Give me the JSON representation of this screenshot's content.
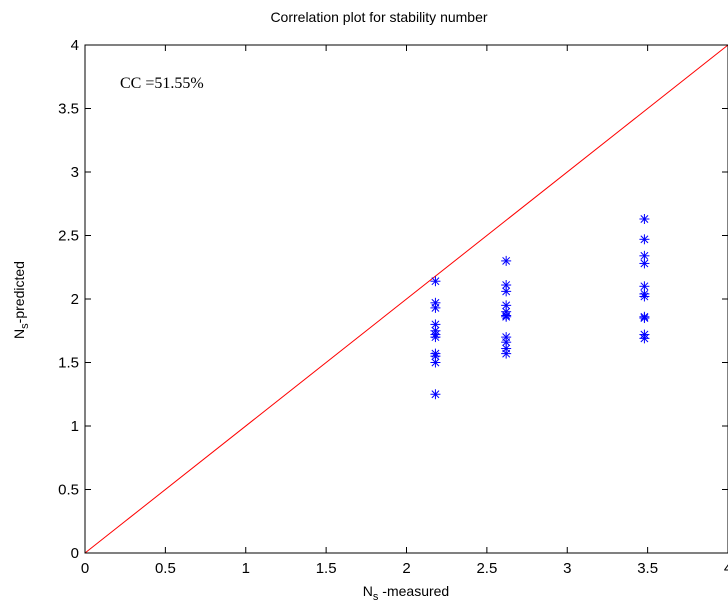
{
  "chart_data": {
    "type": "scatter",
    "title": "Correlation plot for stability number",
    "xlabel": {
      "main": "N",
      "sub": "s",
      "rest": " -measured"
    },
    "ylabel": {
      "main": "N",
      "sub": "s",
      "rest": "-predicted"
    },
    "annotation": "CC =51.55%",
    "xlim": [
      0,
      4
    ],
    "ylim": [
      0,
      4
    ],
    "x_ticks": [
      "0",
      "0.5",
      "1",
      "1.5",
      "2",
      "2.5",
      "3",
      "3.5",
      "4"
    ],
    "y_ticks": [
      "0",
      "0.5",
      "1",
      "1.5",
      "2",
      "2.5",
      "3",
      "3.5",
      "4"
    ],
    "grid": false,
    "series": [
      {
        "marker": "asterisk",
        "color": "#0000ff",
        "points": [
          [
            2.18,
            2.14
          ],
          [
            2.18,
            1.97
          ],
          [
            2.18,
            1.93
          ],
          [
            2.18,
            1.8
          ],
          [
            2.18,
            1.75
          ],
          [
            2.18,
            1.72
          ],
          [
            2.18,
            1.7
          ],
          [
            2.18,
            1.57
          ],
          [
            2.18,
            1.55
          ],
          [
            2.18,
            1.5
          ],
          [
            2.18,
            1.25
          ],
          [
            2.62,
            2.3
          ],
          [
            2.62,
            2.11
          ],
          [
            2.62,
            2.06
          ],
          [
            2.62,
            1.95
          ],
          [
            2.62,
            1.9
          ],
          [
            2.62,
            1.87
          ],
          [
            2.62,
            1.86
          ],
          [
            2.62,
            1.7
          ],
          [
            2.62,
            1.66
          ],
          [
            2.62,
            1.61
          ],
          [
            2.62,
            1.57
          ],
          [
            3.48,
            2.63
          ],
          [
            3.48,
            2.47
          ],
          [
            3.48,
            2.34
          ],
          [
            3.48,
            2.28
          ],
          [
            3.48,
            2.1
          ],
          [
            3.48,
            2.04
          ],
          [
            3.48,
            2.02
          ],
          [
            3.48,
            1.86
          ],
          [
            3.48,
            1.85
          ],
          [
            3.48,
            1.72
          ],
          [
            3.48,
            1.69
          ]
        ]
      },
      {
        "type": "line",
        "color": "#ff0000",
        "points": [
          [
            0,
            0
          ],
          [
            4,
            4
          ]
        ]
      }
    ]
  }
}
